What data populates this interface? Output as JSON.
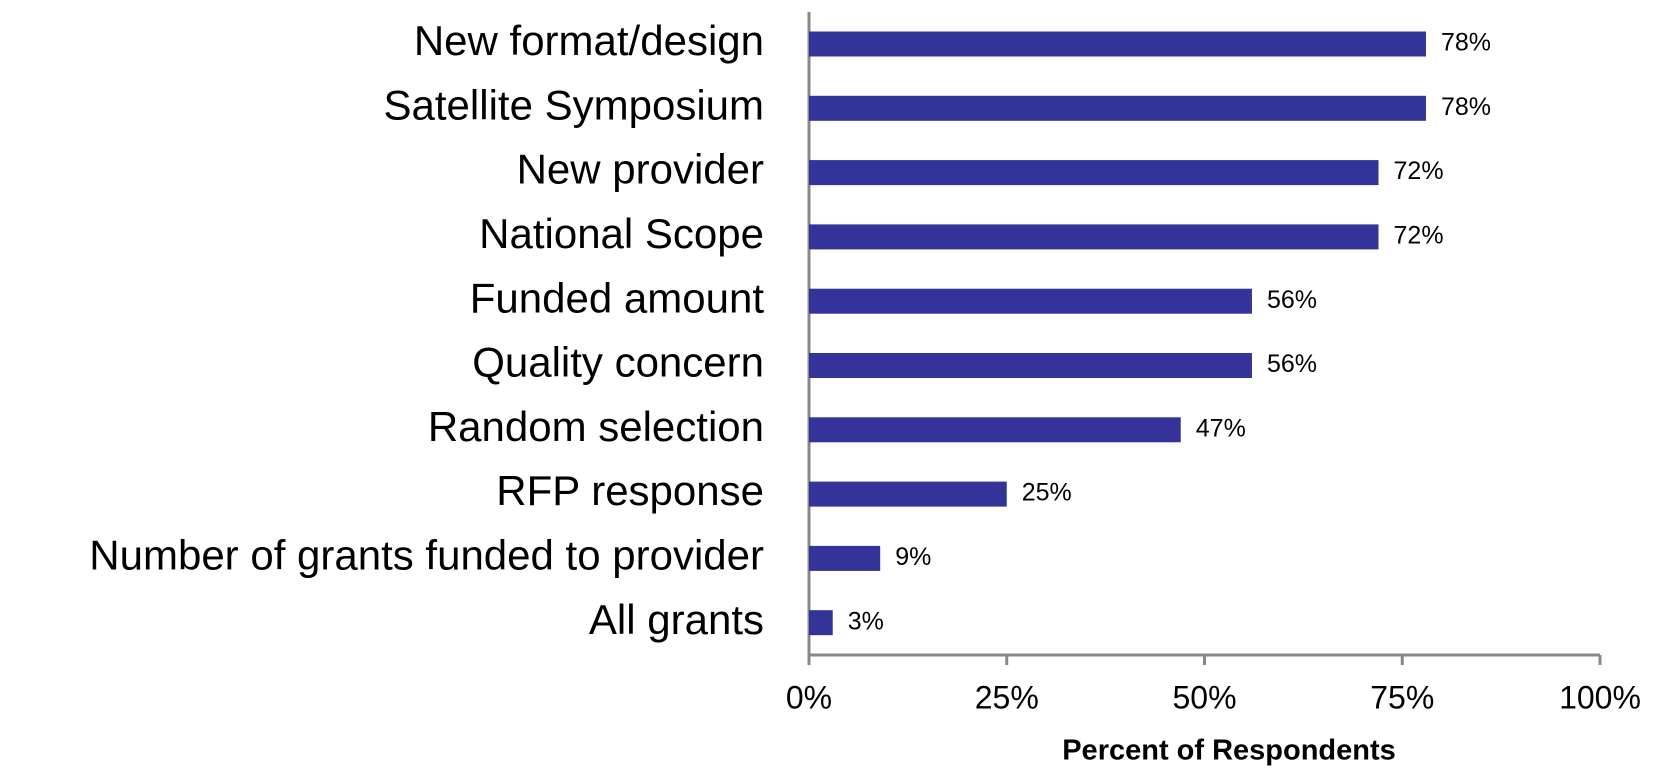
{
  "chart_data": {
    "type": "bar",
    "orientation": "horizontal",
    "categories": [
      "New format/design",
      "Satellite Symposium",
      "New provider",
      "National Scope",
      "Funded amount",
      "Quality concern",
      "Random selection",
      "RFP response",
      "Number of grants funded to provider",
      "All grants"
    ],
    "values": [
      78,
      78,
      72,
      72,
      56,
      56,
      47,
      25,
      9,
      3
    ],
    "value_labels": [
      "78%",
      "78%",
      "72%",
      "72%",
      "56%",
      "56%",
      "47%",
      "25%",
      "9%",
      "3%"
    ],
    "color": "#333399",
    "xlabel": "Percent of Respondents",
    "xlim": [
      0,
      100
    ],
    "xticks": [
      {
        "value": 0,
        "label": "0%"
      },
      {
        "value": 25,
        "label": "25%"
      },
      {
        "value": 50,
        "label": "50%"
      },
      {
        "value": 75,
        "label": "75%"
      },
      {
        "value": 100,
        "label": "100%"
      }
    ]
  }
}
